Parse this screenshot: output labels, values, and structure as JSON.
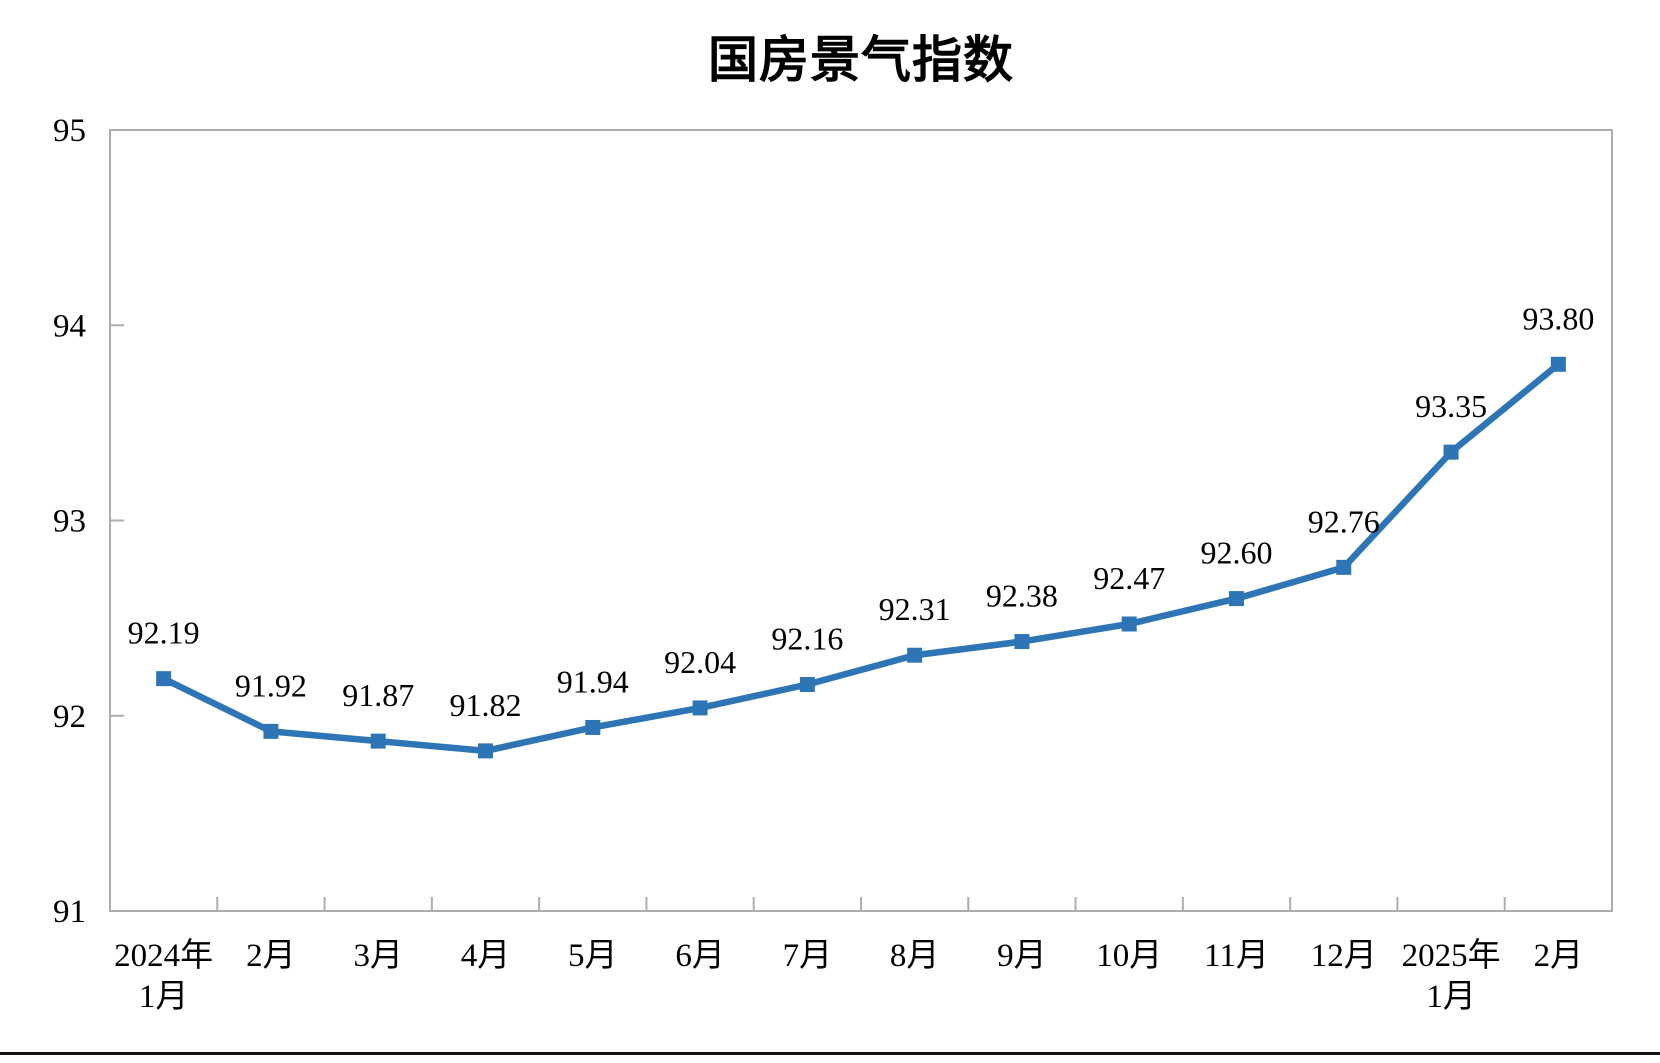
{
  "page": {
    "background_color": "#ffffff",
    "bottom_rule_color": "#111111"
  },
  "chart_data": {
    "type": "line",
    "title": "国房景气指数",
    "categories": [
      [
        "2024年",
        "1月"
      ],
      [
        "2月"
      ],
      [
        "3月"
      ],
      [
        "4月"
      ],
      [
        "5月"
      ],
      [
        "6月"
      ],
      [
        "7月"
      ],
      [
        "8月"
      ],
      [
        "9月"
      ],
      [
        "10月"
      ],
      [
        "11月"
      ],
      [
        "12月"
      ],
      [
        "2025年",
        "1月"
      ],
      [
        "2月"
      ]
    ],
    "values": [
      92.19,
      91.92,
      91.87,
      91.82,
      91.94,
      92.04,
      92.16,
      92.31,
      92.38,
      92.47,
      92.6,
      92.76,
      93.35,
      93.8
    ],
    "data_labels": [
      "92.19",
      "91.92",
      "91.87",
      "91.82",
      "91.94",
      "92.04",
      "92.16",
      "92.31",
      "92.38",
      "92.47",
      "92.60",
      "92.76",
      "93.35",
      "93.80"
    ],
    "xlabel": "",
    "ylabel": "",
    "ylim": [
      91,
      95
    ],
    "yticks": [
      91,
      92,
      93,
      94,
      95
    ],
    "grid": false,
    "legend_position": "none",
    "marker": "square",
    "line_color": "#2E75B6",
    "axis_color": "#ADADAD",
    "text_color": "#000000"
  }
}
